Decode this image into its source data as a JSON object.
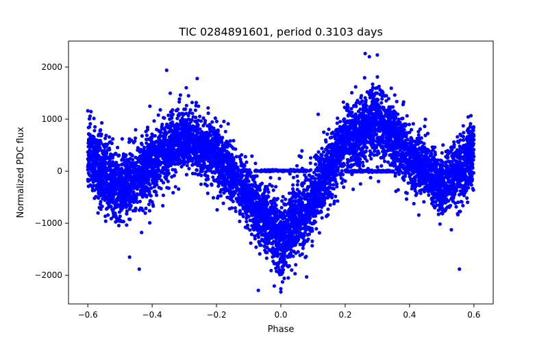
{
  "chart_data": {
    "type": "scatter",
    "title": "TIC 0284891601, period 0.3103 days",
    "xlabel": "Phase",
    "ylabel": "Normalized PDC flux",
    "xlim": [
      -0.66,
      0.66
    ],
    "ylim": [
      -2550,
      2500
    ],
    "x_ticks": [
      -0.6,
      -0.4,
      -0.2,
      0.0,
      0.2,
      0.4,
      0.6
    ],
    "x_tick_labels": [
      "−0.6",
      "−0.4",
      "−0.2",
      "0.0",
      "0.2",
      "0.4",
      "0.6"
    ],
    "y_ticks": [
      -2000,
      -1000,
      0,
      1000,
      2000
    ],
    "y_tick_labels": [
      "−2000",
      "−1000",
      "0",
      "1000",
      "2000"
    ],
    "grid": false,
    "legend": "none",
    "point_color": "#0000ff",
    "x_range": [
      -0.6,
      0.6
    ],
    "profile": {
      "phase": [
        -0.6,
        -0.5,
        -0.4,
        -0.3,
        -0.2,
        -0.1,
        0.0,
        0.1,
        0.2,
        0.3,
        0.4,
        0.5,
        0.6
      ],
      "mean_flux": [
        350,
        -400,
        150,
        650,
        300,
        -500,
        -1300,
        -500,
        600,
        950,
        300,
        -300,
        350
      ],
      "scatter": [
        450,
        380,
        400,
        350,
        380,
        360,
        450,
        420,
        380,
        420,
        380,
        360,
        400
      ]
    },
    "flat_segments": [
      {
        "x": [
          -0.08,
          0.08
        ],
        "y": 10
      },
      {
        "x": [
          0.2,
          0.35
        ],
        "y": 0
      }
    ],
    "outliers": [
      {
        "x": -0.355,
        "y": 1940
      },
      {
        "x": -0.26,
        "y": 1780
      },
      {
        "x": 0.262,
        "y": 2260
      },
      {
        "x": 0.275,
        "y": 2200
      },
      {
        "x": -0.6,
        "y": 1160
      },
      {
        "x": -0.44,
        "y": -1880
      },
      {
        "x": 0.555,
        "y": -1880
      },
      {
        "x": 0.0,
        "y": -2320
      },
      {
        "x": -0.07,
        "y": -2290
      },
      {
        "x": 0.08,
        "y": -2030
      },
      {
        "x": -0.47,
        "y": -1650
      }
    ]
  }
}
